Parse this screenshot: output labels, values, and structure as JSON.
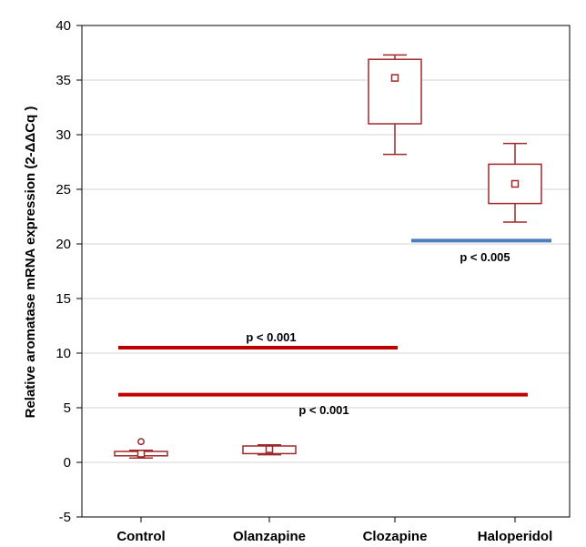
{
  "chart_data": {
    "type": "box",
    "ylabel": "Relative   aromatase mRNA expression (2-ΔΔCq )",
    "xlabel": "",
    "ylim": [
      -5,
      40
    ],
    "yticks": [
      -5,
      0,
      5,
      10,
      15,
      20,
      25,
      30,
      35,
      40
    ],
    "grid": "horizontal",
    "categories": [
      "Control",
      "Olanzapine",
      "Clozapine",
      "Haloperidol"
    ],
    "box_color": "#a0282a",
    "boxes": [
      {
        "category": "Control",
        "whisker_low": 0.4,
        "q1": 0.6,
        "median": 0.8,
        "q3": 1.0,
        "whisker_high": 1.1,
        "outliers": [
          1.9
        ]
      },
      {
        "category": "Olanzapine",
        "whisker_low": 0.7,
        "q1": 0.8,
        "median": 1.2,
        "q3": 1.5,
        "whisker_high": 1.6,
        "outliers": []
      },
      {
        "category": "Clozapine",
        "whisker_low": 28.2,
        "q1": 31.0,
        "median": 35.2,
        "q3": 36.9,
        "whisker_high": 37.3,
        "outliers": []
      },
      {
        "category": "Haloperidol",
        "whisker_low": 22.0,
        "q1": 23.7,
        "median": 25.5,
        "q3": 27.3,
        "whisker_high": 29.2,
        "outliers": []
      }
    ],
    "annotations": [
      {
        "label": "p < 0.001",
        "y": 10.5,
        "from": "Control",
        "to": "Clozapine",
        "color": "#c00000"
      },
      {
        "label": "p < 0.001",
        "y": 6.2,
        "from": "Control",
        "to": "Haloperidol",
        "color": "#c00000"
      },
      {
        "label": "p < 0.005",
        "y": 20.3,
        "from": "Clozapine",
        "to": "Haloperidol",
        "color": "#4a7ebf"
      }
    ]
  }
}
